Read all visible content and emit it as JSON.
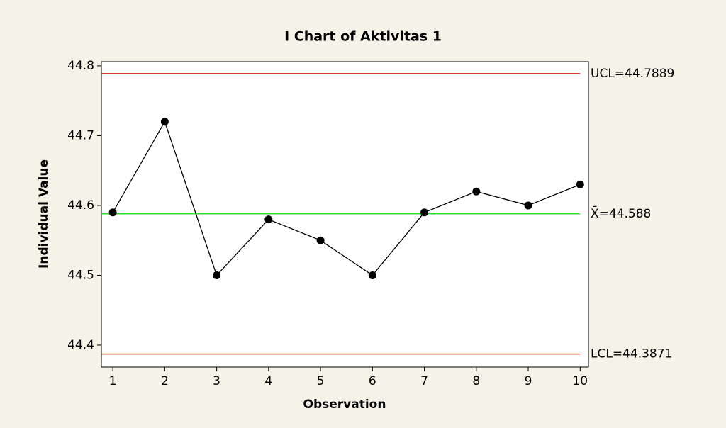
{
  "chart_data": {
    "type": "line",
    "title": "I Chart of Aktivitas 1",
    "x_label": "Observation",
    "y_label": "Individual Value",
    "x": [
      1,
      2,
      3,
      4,
      5,
      6,
      7,
      8,
      9,
      10
    ],
    "series": [
      {
        "color": "#000000",
        "values": [
          44.59,
          44.72,
          44.5,
          44.58,
          44.55,
          44.5,
          44.59,
          44.62,
          44.6,
          44.63
        ]
      }
    ],
    "control_lines": [
      {
        "value": 44.7889,
        "label": "UCL=44.7889",
        "color": "#d42020"
      },
      {
        "value": 44.588,
        "label": "X̄=44.588",
        "color": "#22e022"
      },
      {
        "value": 44.3871,
        "label": "LCL=44.3871",
        "color": "#d42020"
      }
    ],
    "xlim": [
      0.78,
      10.16
    ],
    "ylim": [
      44.3685,
      44.806
    ],
    "xticks": [
      1,
      2,
      3,
      4,
      5,
      6,
      7,
      8,
      9,
      10
    ],
    "yticks": [
      44.4,
      44.5,
      44.6,
      44.7,
      44.8
    ]
  }
}
